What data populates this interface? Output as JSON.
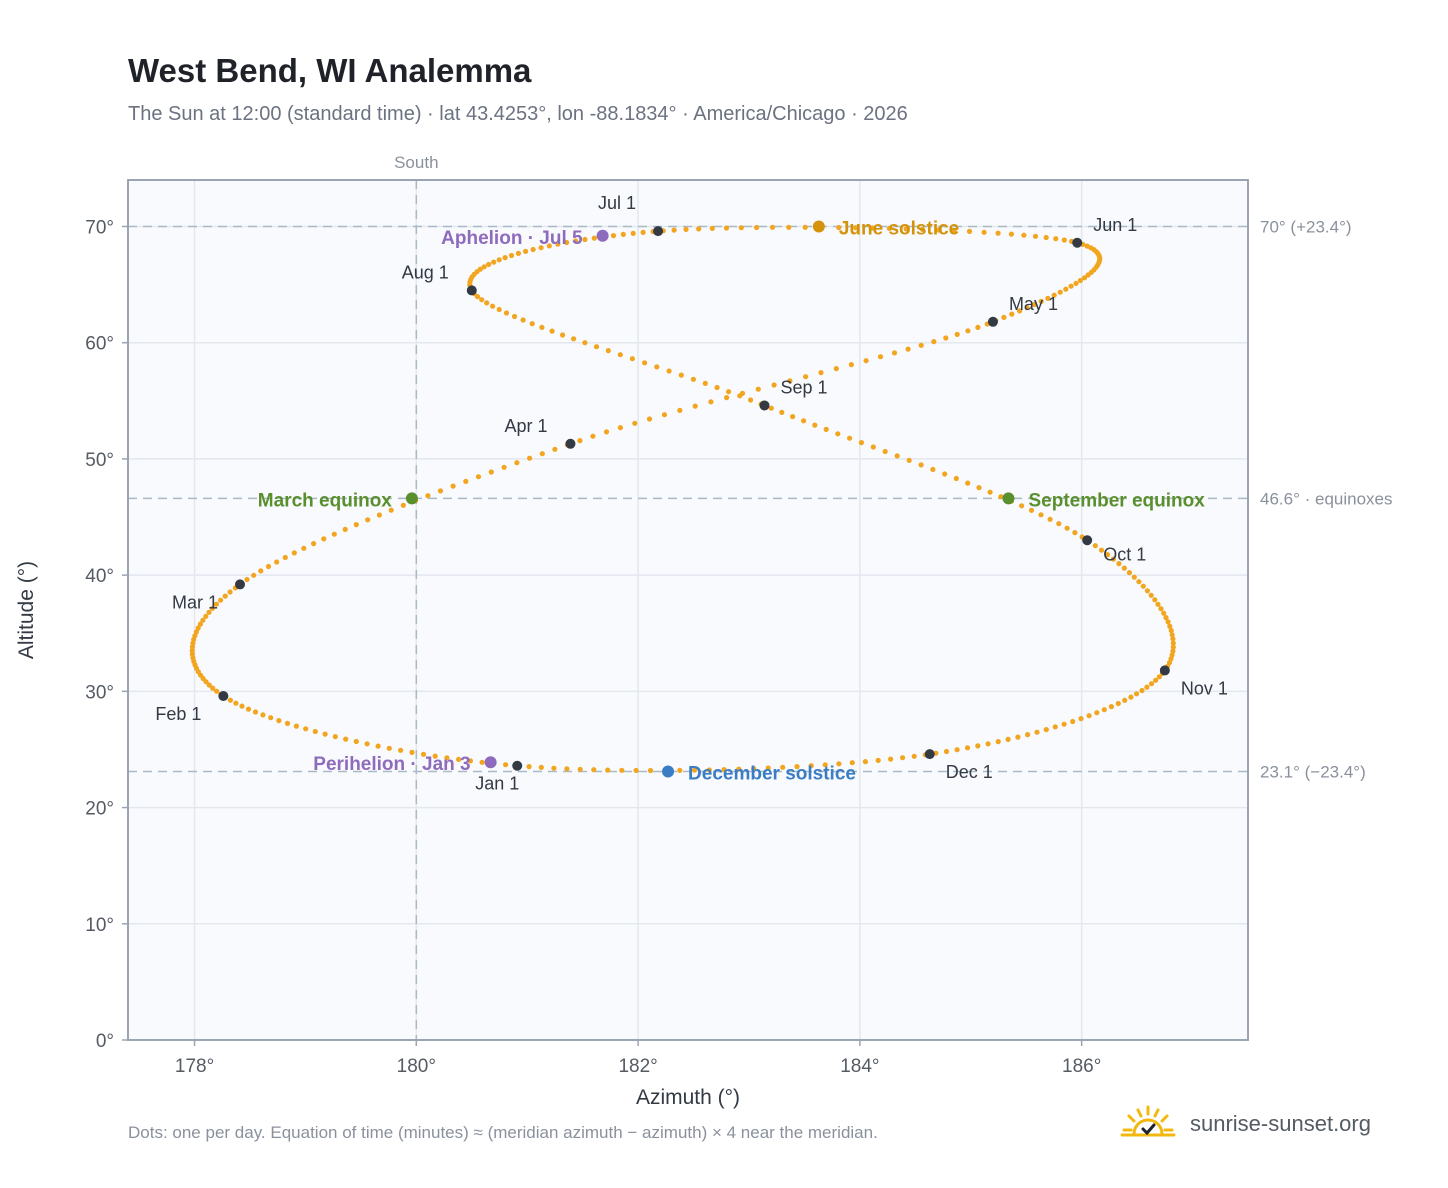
{
  "title": "West Bend, WI Analemma",
  "subtitle": "The Sun at 12:00 (standard time) · lat 43.4253°, lon -88.1834° · America/Chicago · 2026",
  "footnote": "Dots: one per day. Equation of time (minutes) ≈ (meridian azimuth − azimuth) × 4 near the meridian.",
  "brand": {
    "name": "sunrise-sunset.org",
    "icon": "sun-check-icon"
  },
  "chart_data": {
    "type": "scatter",
    "xlabel": "Azimuth (°)",
    "ylabel": "Altitude (°)",
    "xlim": [
      177.4,
      187.5
    ],
    "ylim": [
      0,
      74
    ],
    "x_ticks": [
      178,
      180,
      182,
      184,
      186
    ],
    "y_ticks": [
      0,
      10,
      20,
      30,
      40,
      50,
      60,
      70
    ],
    "x_tick_labels": [
      "178°",
      "180°",
      "182°",
      "184°",
      "186°"
    ],
    "y_tick_labels": [
      "0°",
      "10°",
      "20°",
      "30°",
      "40°",
      "50°",
      "60°",
      "70°"
    ],
    "grid": true,
    "south_line": {
      "x": 180,
      "label": "South"
    },
    "reference_lines": [
      {
        "y": 70.0,
        "label": "70° (+23.4°)"
      },
      {
        "y": 46.6,
        "label": "46.6° · equinoxes"
      },
      {
        "y": 23.1,
        "label": "23.1° (−23.4°)"
      }
    ],
    "daily_path": [
      [
        180.91,
        23.6
      ],
      [
        178.26,
        29.6
      ],
      [
        178.41,
        39.2
      ],
      [
        181.39,
        51.3
      ],
      [
        185.2,
        61.8
      ],
      [
        185.96,
        68.6
      ],
      [
        182.18,
        69.6
      ],
      [
        180.5,
        64.5
      ],
      [
        183.14,
        54.6
      ],
      [
        186.05,
        43.0
      ],
      [
        186.75,
        31.8
      ],
      [
        184.63,
        24.6
      ],
      [
        180.91,
        23.6
      ]
    ],
    "month_markers": [
      {
        "label": "Jan 1",
        "x": 180.91,
        "y": 23.6
      },
      {
        "label": "Feb 1",
        "x": 178.26,
        "y": 29.6
      },
      {
        "label": "Mar 1",
        "x": 178.41,
        "y": 39.2
      },
      {
        "label": "Apr 1",
        "x": 181.39,
        "y": 51.3
      },
      {
        "label": "May 1",
        "x": 185.2,
        "y": 61.8
      },
      {
        "label": "Jun 1",
        "x": 185.96,
        "y": 68.6
      },
      {
        "label": "Jul 1",
        "x": 182.18,
        "y": 69.6
      },
      {
        "label": "Aug 1",
        "x": 180.5,
        "y": 64.5
      },
      {
        "label": "Sep 1",
        "x": 183.14,
        "y": 54.6
      },
      {
        "label": "Oct 1",
        "x": 186.05,
        "y": 43.0
      },
      {
        "label": "Nov 1",
        "x": 186.75,
        "y": 31.8
      },
      {
        "label": "Dec 1",
        "x": 184.63,
        "y": 24.6
      }
    ],
    "events": [
      {
        "label": "June solstice",
        "x": 183.63,
        "y": 70.0,
        "color": "#d4930a"
      },
      {
        "label": "December solstice",
        "x": 182.27,
        "y": 23.1,
        "color": "#3b7dc4"
      },
      {
        "label": "March equinox",
        "x": 179.96,
        "y": 46.6,
        "color": "#5a8f2e"
      },
      {
        "label": "September equinox",
        "x": 185.34,
        "y": 46.6,
        "color": "#5a8f2e"
      },
      {
        "label": "Aphelion · Jul 5",
        "x": 181.68,
        "y": 69.2,
        "color": "#8e6bbd"
      },
      {
        "label": "Perihelion · Jan 3",
        "x": 180.67,
        "y": 23.9,
        "color": "#8e6bbd"
      }
    ],
    "colors": {
      "path": "#f2a51f",
      "month_marker": "#333a44",
      "grid": "#e3e8ee",
      "plot_bg": "#f8fafd",
      "frame": "#9aa4b2",
      "reference": "#a9b9c6"
    }
  }
}
